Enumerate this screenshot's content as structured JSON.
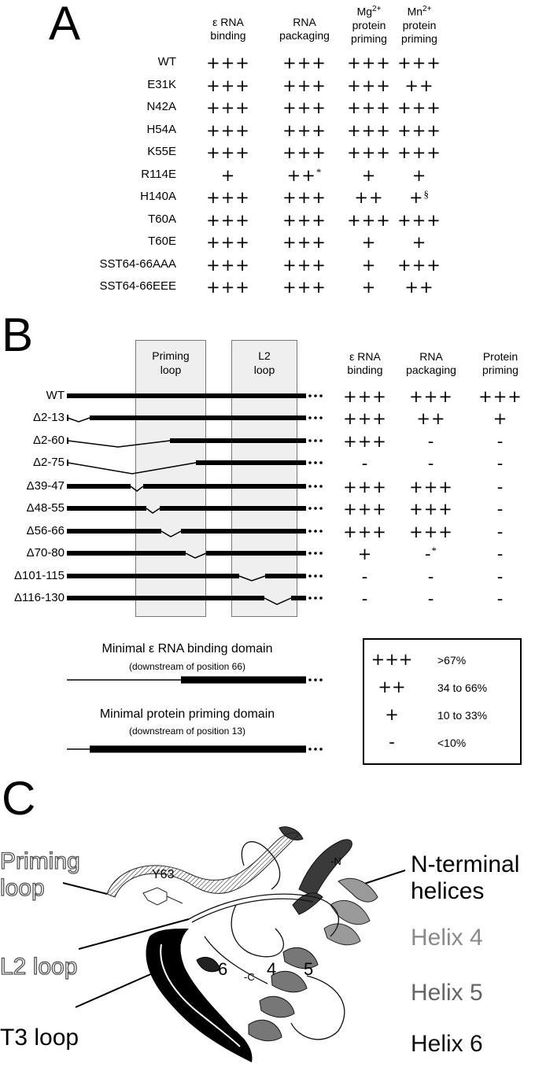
{
  "panelA": {
    "letter": "A",
    "headers": [
      {
        "l1": "ε RNA",
        "l2": "binding",
        "l3": ""
      },
      {
        "l1": "RNA",
        "l2": "packaging",
        "l3": ""
      },
      {
        "l1": "Mg",
        "sup": "2+",
        "l2": "protein",
        "l3": "priming"
      },
      {
        "l1": "Mn",
        "sup": "2+",
        "l2": "protein",
        "l3": "priming"
      }
    ],
    "rows": [
      {
        "name": "WT",
        "vals": [
          "+++",
          "+++",
          "+++",
          "+++"
        ],
        "marks": [
          "",
          "",
          "",
          ""
        ]
      },
      {
        "name": "E31K",
        "vals": [
          "+++",
          "+++",
          "+++",
          "++"
        ],
        "marks": [
          "",
          "",
          "",
          ""
        ]
      },
      {
        "name": "N42A",
        "vals": [
          "+++",
          "+++",
          "+++",
          "+++"
        ],
        "marks": [
          "",
          "",
          "",
          ""
        ]
      },
      {
        "name": "H54A",
        "vals": [
          "+++",
          "+++",
          "+++",
          "+++"
        ],
        "marks": [
          "",
          "",
          "",
          ""
        ]
      },
      {
        "name": "K55E",
        "vals": [
          "+++",
          "+++",
          "+++",
          "+++"
        ],
        "marks": [
          "",
          "",
          "",
          ""
        ]
      },
      {
        "name": "R114E",
        "vals": [
          "+",
          "++",
          "+",
          "+"
        ],
        "marks": [
          "",
          "*",
          "",
          ""
        ]
      },
      {
        "name": "H140A",
        "vals": [
          "+++",
          "+++",
          "++",
          "+"
        ],
        "marks": [
          "",
          "",
          "",
          "§"
        ]
      },
      {
        "name": "T60A",
        "vals": [
          "+++",
          "+++",
          "+++",
          "+++"
        ],
        "marks": [
          "",
          "",
          "",
          ""
        ]
      },
      {
        "name": "T60E",
        "vals": [
          "+++",
          "+++",
          "+",
          "+"
        ],
        "marks": [
          "",
          "",
          "",
          ""
        ]
      },
      {
        "name": "SST64-66AAA",
        "vals": [
          "+++",
          "+++",
          "+",
          "+++"
        ],
        "marks": [
          "",
          "",
          "",
          ""
        ]
      },
      {
        "name": "SST64-66EEE",
        "vals": [
          "+++",
          "+++",
          "+",
          "++"
        ],
        "marks": [
          "",
          "",
          "",
          ""
        ]
      }
    ]
  },
  "panelB": {
    "letter": "B",
    "boxes": [
      {
        "l1": "Priming",
        "l2": "loop"
      },
      {
        "l1": "L2",
        "l2": "loop"
      }
    ],
    "headers": [
      {
        "l1": "ε RNA",
        "l2": "binding"
      },
      {
        "l1": "RNA",
        "l2": "packaging"
      },
      {
        "l1": "Protein",
        "l2": "priming"
      }
    ],
    "rows": [
      {
        "name": "WT",
        "vals": [
          "+++",
          "+++",
          "+++"
        ],
        "marks": [
          "",
          "",
          ""
        ]
      },
      {
        "name": "Δ2-13",
        "vals": [
          "+++",
          "++",
          "+"
        ],
        "marks": [
          "",
          "",
          ""
        ]
      },
      {
        "name": "Δ2-60",
        "vals": [
          "+++",
          "-",
          "-"
        ],
        "marks": [
          "",
          "",
          ""
        ]
      },
      {
        "name": "Δ2-75",
        "vals": [
          "-",
          "-",
          "-"
        ],
        "marks": [
          "",
          "",
          ""
        ]
      },
      {
        "name": "Δ39-47",
        "vals": [
          "+++",
          "+++",
          "-"
        ],
        "marks": [
          "",
          "",
          ""
        ]
      },
      {
        "name": "Δ48-55",
        "vals": [
          "+++",
          "+++",
          "-"
        ],
        "marks": [
          "",
          "",
          ""
        ]
      },
      {
        "name": "Δ56-66",
        "vals": [
          "+++",
          "+++",
          "-"
        ],
        "marks": [
          "",
          "",
          ""
        ]
      },
      {
        "name": "Δ70-80",
        "vals": [
          "+",
          "-",
          "-"
        ],
        "marks": [
          "",
          "*",
          ""
        ]
      },
      {
        "name": "Δ101-115",
        "vals": [
          "-",
          "-",
          "-"
        ],
        "marks": [
          "",
          "",
          ""
        ]
      },
      {
        "name": "Δ116-130",
        "vals": [
          "-",
          "-",
          "-"
        ],
        "marks": [
          "",
          "",
          ""
        ]
      }
    ],
    "minimal": [
      {
        "title": "Minimal ε RNA binding domain",
        "sub": "(downstream of position 66)"
      },
      {
        "title": "Minimal protein priming domain",
        "sub": "(downstream of position 13)"
      }
    ],
    "legend": [
      {
        "sym": "+++",
        "val": ">67%"
      },
      {
        "sym": "++",
        "val": "34 to 66%"
      },
      {
        "sym": "+",
        "val": "10 to 33%"
      },
      {
        "sym": "-",
        "val": "<10%"
      }
    ]
  },
  "panelC": {
    "letter": "C",
    "labels": {
      "priming1": "Priming",
      "priming2": "loop",
      "l2": "L2 loop",
      "t3": "T3 loop",
      "nterm1": "N-terminal",
      "nterm2": "helices",
      "helix4": "Helix 4",
      "helix5": "Helix 5",
      "helix6": "Helix 6"
    },
    "inner": {
      "y63": "Y63",
      "n": "-N",
      "c": "-C",
      "h6": "6",
      "h4": "4",
      "h5": "5"
    },
    "colors": {
      "helix4": "#8a8a8a",
      "helix5": "#666666",
      "helix6": "#111111"
    }
  }
}
